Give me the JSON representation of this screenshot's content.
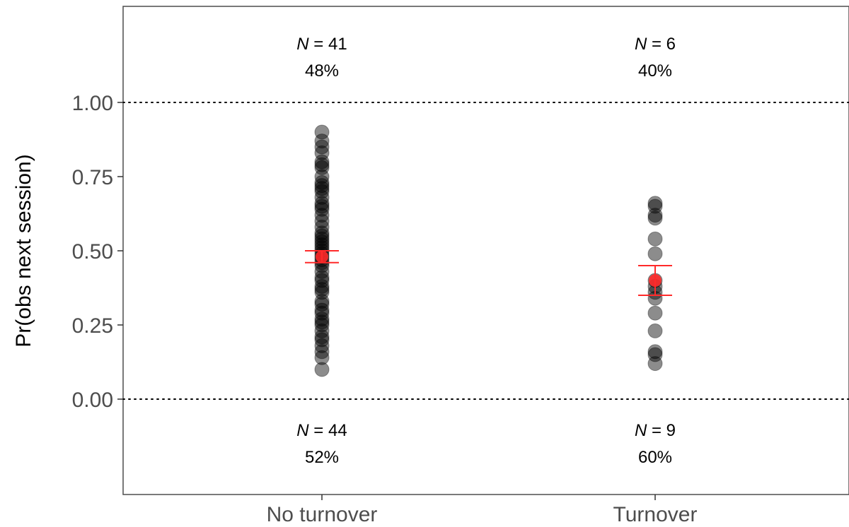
{
  "chart_data": {
    "type": "scatter",
    "ylabel": "Pr(obs next session)",
    "xlabel": "",
    "categories": [
      "No turnover",
      "Turnover"
    ],
    "ylim": [
      -0.3,
      1.3
    ],
    "yticks": [
      0,
      0.25,
      0.5,
      0.75,
      1
    ],
    "ytick_labels": [
      "0.00",
      "0.25",
      "0.50",
      "0.75",
      "1.00"
    ],
    "reference_lines": [
      0,
      1
    ],
    "grid": false,
    "point_color": "#000000",
    "point_opacity": 0.45,
    "mean_color": "#ff2a2a",
    "groups": [
      {
        "category": "No turnover",
        "points": [
          0.1,
          0.14,
          0.16,
          0.18,
          0.2,
          0.21,
          0.23,
          0.25,
          0.26,
          0.27,
          0.29,
          0.3,
          0.32,
          0.33,
          0.36,
          0.37,
          0.38,
          0.4,
          0.41,
          0.43,
          0.45,
          0.46,
          0.47,
          0.48,
          0.49,
          0.5,
          0.51,
          0.52,
          0.53,
          0.54,
          0.55,
          0.56,
          0.58,
          0.6,
          0.62,
          0.64,
          0.65,
          0.66,
          0.68,
          0.7,
          0.71,
          0.72,
          0.73,
          0.75,
          0.78,
          0.79,
          0.8,
          0.83,
          0.85,
          0.87,
          0.9
        ],
        "mean": 0.48,
        "ci": [
          0.46,
          0.5
        ],
        "above": {
          "n_prefix": "N",
          "n_text": " = 41",
          "pct": "48%"
        },
        "below": {
          "n_prefix": "N",
          "n_text": " = 44",
          "pct": "52%"
        }
      },
      {
        "category": "Turnover",
        "points": [
          0.12,
          0.15,
          0.16,
          0.23,
          0.29,
          0.34,
          0.36,
          0.38,
          0.4,
          0.49,
          0.54,
          0.61,
          0.62,
          0.65,
          0.66
        ],
        "mean": 0.4,
        "ci": [
          0.35,
          0.45
        ],
        "above": {
          "n_prefix": "N",
          "n_text": " = 6",
          "pct": "40%"
        },
        "below": {
          "n_prefix": "N",
          "n_text": " = 9",
          "pct": "60%"
        }
      }
    ]
  }
}
